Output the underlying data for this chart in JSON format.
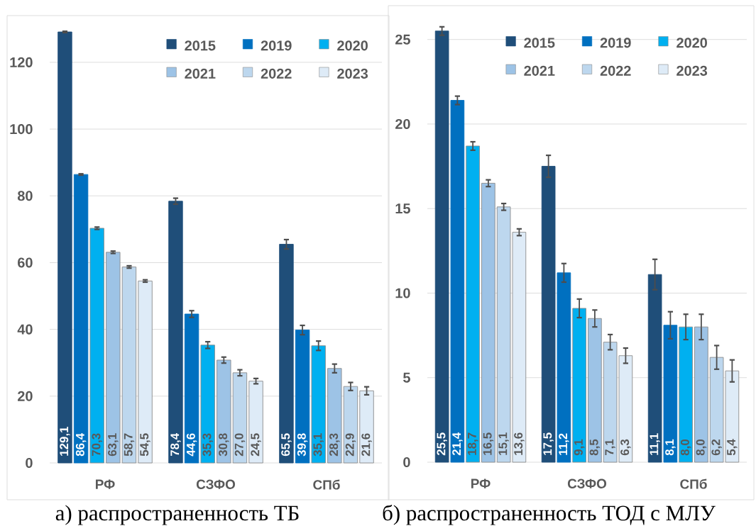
{
  "chart_data": [
    {
      "type": "bar",
      "categories": [
        "РФ",
        "СЗФО",
        "СПб"
      ],
      "series": [
        {
          "name": "2015",
          "color": "#1f4e79",
          "values": [
            129.1,
            78.4,
            65.5
          ],
          "value_labels": [
            "129,1",
            "78,4",
            "65,5"
          ],
          "errors": [
            0.2,
            0.9,
            1.4
          ]
        },
        {
          "name": "2019",
          "color": "#0070c0",
          "values": [
            86.4,
            44.6,
            39.8
          ],
          "value_labels": [
            "86,4",
            "44,6",
            "39,8"
          ],
          "errors": [
            0.2,
            1.0,
            1.4
          ]
        },
        {
          "name": "2020",
          "color": "#00b0f0",
          "values": [
            70.3,
            35.3,
            35.1
          ],
          "value_labels": [
            "70,3",
            "35,3",
            "35,1"
          ],
          "errors": [
            0.35,
            1.0,
            1.4
          ]
        },
        {
          "name": "2021",
          "color": "#9dc3e6",
          "values": [
            63.1,
            30.8,
            28.3
          ],
          "value_labels": [
            "63,1",
            "30,8",
            "28,3"
          ],
          "errors": [
            0.35,
            0.9,
            1.3
          ]
        },
        {
          "name": "2022",
          "color": "#bdd7ee",
          "values": [
            58.7,
            27.0,
            22.9
          ],
          "value_labels": [
            "58,7",
            "27,0",
            "22,9"
          ],
          "errors": [
            0.35,
            0.9,
            1.2
          ]
        },
        {
          "name": "2023",
          "color": "#deebf7",
          "values": [
            54.5,
            24.5,
            21.6
          ],
          "value_labels": [
            "54,5",
            "24,5",
            "21,6"
          ],
          "errors": [
            0.35,
            0.8,
            1.2
          ]
        }
      ],
      "ylim": [
        0,
        134
      ],
      "yticks": [
        0,
        20,
        40,
        60,
        80,
        100,
        120
      ],
      "grid": "y",
      "legend": "top right",
      "annotations": [
        "а) распространенность ТБ"
      ]
    },
    {
      "type": "bar",
      "categories": [
        "РФ",
        "СЗФО",
        "СПб"
      ],
      "series": [
        {
          "name": "2015",
          "color": "#1f4e79",
          "values": [
            25.5,
            17.5,
            11.1
          ],
          "value_labels": [
            "25,5",
            "17,5",
            "11,1"
          ],
          "errors": [
            0.25,
            0.65,
            0.9
          ]
        },
        {
          "name": "2019",
          "color": "#0070c0",
          "values": [
            21.4,
            11.2,
            8.1
          ],
          "value_labels": [
            "21,4",
            "11,2",
            "8,1"
          ],
          "errors": [
            0.25,
            0.55,
            0.8
          ]
        },
        {
          "name": "2020",
          "color": "#00b0f0",
          "values": [
            18.7,
            9.1,
            8.0
          ],
          "value_labels": [
            "18,7",
            "9,1",
            "8,0"
          ],
          "errors": [
            0.25,
            0.55,
            0.75
          ]
        },
        {
          "name": "2021",
          "color": "#9dc3e6",
          "values": [
            16.5,
            8.5,
            8.0
          ],
          "value_labels": [
            "16,5",
            "8,5",
            "8,0"
          ],
          "errors": [
            0.2,
            0.5,
            0.75
          ]
        },
        {
          "name": "2022",
          "color": "#bdd7ee",
          "values": [
            15.1,
            7.1,
            6.2
          ],
          "value_labels": [
            "15,1",
            "7,1",
            "6,2"
          ],
          "errors": [
            0.2,
            0.45,
            0.7
          ]
        },
        {
          "name": "2023",
          "color": "#deebf7",
          "values": [
            13.6,
            6.3,
            5.4
          ],
          "value_labels": [
            "13,6",
            "6,3",
            "5,4"
          ],
          "errors": [
            0.2,
            0.45,
            0.65
          ]
        }
      ],
      "ylim": [
        0,
        27
      ],
      "yticks": [
        0,
        5,
        10,
        15,
        20,
        25
      ],
      "grid": "y",
      "legend": "top right",
      "annotations": [
        "б) распространенность ТОД с МЛУ"
      ]
    }
  ]
}
